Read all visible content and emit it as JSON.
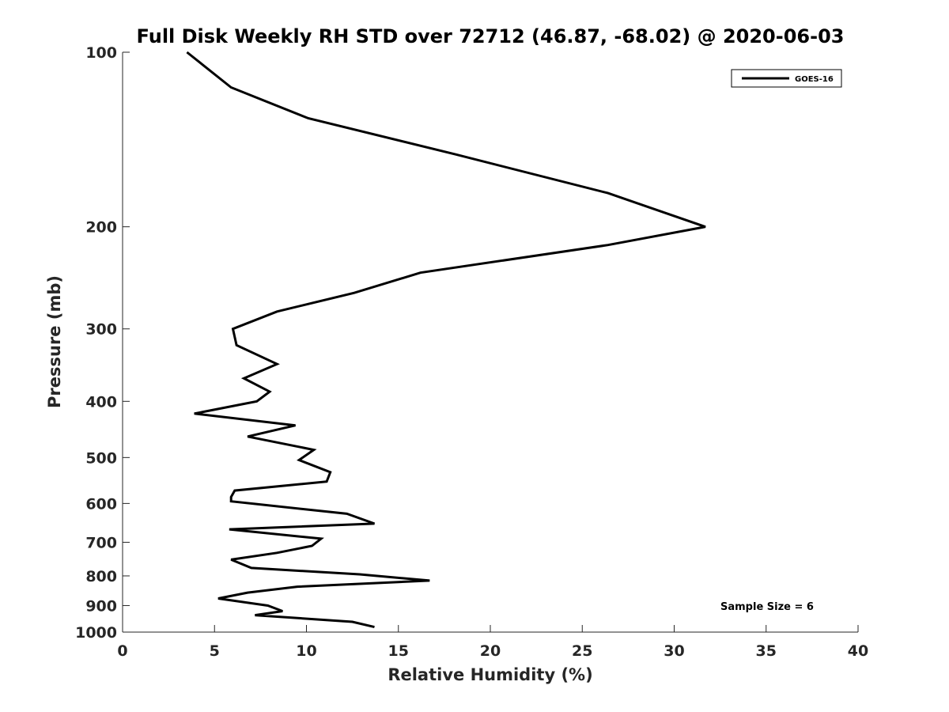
{
  "chart_data": {
    "type": "line",
    "title": "Full Disk Weekly RH STD over 72712 (46.87, -68.02) @ 2020-06-03",
    "xlabel": "Relative Humidity (%)",
    "ylabel": "Pressure (mb)",
    "xlim": [
      0,
      40
    ],
    "ylim": [
      100,
      1000
    ],
    "y_scale": "log",
    "y_reversed": true,
    "x_ticks": [
      0,
      5,
      10,
      15,
      20,
      25,
      30,
      35,
      40
    ],
    "y_ticks": [
      100,
      200,
      300,
      400,
      500,
      600,
      700,
      800,
      900,
      1000
    ],
    "grid": false,
    "legend_position": "top-right",
    "series": [
      {
        "name": "GOES-16",
        "color": "#000000",
        "x": [
          3.5,
          5.9,
          10.1,
          18.1,
          26.4,
          31.7,
          26.4,
          16.2,
          12.6,
          8.4,
          6.0,
          6.2,
          8.4,
          6.6,
          8.0,
          7.3,
          3.9,
          9.4,
          6.8,
          10.4,
          9.6,
          11.3,
          11.1,
          6.1,
          5.9,
          5.9,
          12.2,
          13.7,
          5.8,
          10.8,
          10.3,
          8.4,
          5.9,
          7.0,
          12.9,
          16.7,
          9.5,
          6.8,
          5.2,
          7.9,
          8.7,
          7.2,
          12.5,
          13.7
        ],
        "y": [
          100,
          115,
          130,
          150,
          175,
          200,
          215,
          240,
          260,
          280,
          300,
          320,
          345,
          365,
          385,
          400,
          420,
          440,
          460,
          485,
          505,
          530,
          550,
          570,
          585,
          595,
          625,
          650,
          665,
          690,
          710,
          730,
          750,
          775,
          795,
          815,
          835,
          855,
          875,
          900,
          920,
          935,
          960,
          980
        ]
      }
    ],
    "annotations": [
      "Sample Size = 6"
    ]
  }
}
